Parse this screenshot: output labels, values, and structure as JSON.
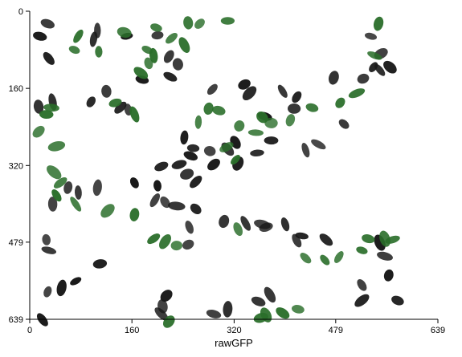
{
  "chart_data": {
    "type": "scatter",
    "xlabel": "rawGFP",
    "xlim": [
      0,
      639
    ],
    "ylim": [
      0,
      639
    ],
    "y_inverted": true,
    "x_ticks": [
      "0",
      "160",
      "320",
      "479",
      "639"
    ],
    "y_ticks": [
      "0",
      "160",
      "320",
      "479",
      "639"
    ],
    "grid": false,
    "series": [
      {
        "color": "#1a1a1a",
        "points": [
          [
            28,
            26
          ],
          [
            16,
            52
          ],
          [
            30,
            98
          ],
          [
            106,
            40
          ],
          [
            100,
            58
          ],
          [
            152,
            52
          ],
          [
            200,
            50
          ],
          [
            218,
            94
          ],
          [
            232,
            110
          ],
          [
            220,
            136
          ],
          [
            176,
            142
          ],
          [
            120,
            166
          ],
          [
            142,
            200
          ],
          [
            154,
            204
          ],
          [
            96,
            188
          ],
          [
            36,
            188
          ],
          [
            14,
            198
          ],
          [
            286,
            162
          ],
          [
            336,
            152
          ],
          [
            344,
            170
          ],
          [
            396,
            166
          ],
          [
            418,
            178
          ],
          [
            414,
            202
          ],
          [
            368,
            218
          ],
          [
            476,
            138
          ],
          [
            522,
            140
          ],
          [
            538,
            116
          ],
          [
            564,
            116
          ],
          [
            534,
            52
          ],
          [
            550,
            88
          ],
          [
            548,
            122
          ],
          [
            492,
            234
          ],
          [
            452,
            276
          ],
          [
            432,
            288
          ],
          [
            378,
            268
          ],
          [
            322,
            272
          ],
          [
            310,
            286
          ],
          [
            282,
            290
          ],
          [
            256,
            284
          ],
          [
            242,
            262
          ],
          [
            252,
            300
          ],
          [
            234,
            318
          ],
          [
            246,
            338
          ],
          [
            288,
            318
          ],
          [
            326,
            316
          ],
          [
            356,
            294
          ],
          [
            260,
            354
          ],
          [
            206,
            322
          ],
          [
            200,
            362
          ],
          [
            196,
            392
          ],
          [
            212,
            396
          ],
          [
            230,
            404
          ],
          [
            260,
            410
          ],
          [
            304,
            436
          ],
          [
            338,
            440
          ],
          [
            364,
            442
          ],
          [
            400,
            442
          ],
          [
            426,
            466
          ],
          [
            370,
            448
          ],
          [
            250,
            448
          ],
          [
            248,
            484
          ],
          [
            418,
            476
          ],
          [
            464,
            474
          ],
          [
            548,
            480
          ],
          [
            556,
            508
          ],
          [
            562,
            548
          ],
          [
            520,
            568
          ],
          [
            520,
            600
          ],
          [
            576,
            600
          ],
          [
            376,
            588
          ],
          [
            358,
            602
          ],
          [
            310,
            618
          ],
          [
            288,
            628
          ],
          [
            214,
            590
          ],
          [
            208,
            612
          ],
          [
            206,
            628
          ],
          [
            164,
            356
          ],
          [
            106,
            366
          ],
          [
            76,
            376
          ],
          [
            60,
            366
          ],
          [
            36,
            400
          ],
          [
            26,
            474
          ],
          [
            30,
            496
          ],
          [
            110,
            524
          ],
          [
            72,
            560
          ],
          [
            50,
            574
          ],
          [
            28,
            582
          ],
          [
            20,
            640
          ]
        ]
      },
      {
        "color": "#2a6e2a",
        "points": [
          [
            76,
            52
          ],
          [
            70,
            80
          ],
          [
            108,
            84
          ],
          [
            148,
            44
          ],
          [
            184,
            80
          ],
          [
            198,
            34
          ],
          [
            248,
            24
          ],
          [
            242,
            70
          ],
          [
            222,
            56
          ],
          [
            194,
            92
          ],
          [
            186,
            108
          ],
          [
            174,
            128
          ],
          [
            266,
            26
          ],
          [
            310,
            20
          ],
          [
            34,
            200
          ],
          [
            26,
            214
          ],
          [
            14,
            250
          ],
          [
            42,
            280
          ],
          [
            134,
            190
          ],
          [
            164,
            214
          ],
          [
            280,
            202
          ],
          [
            296,
            206
          ],
          [
            264,
            230
          ],
          [
            328,
            238
          ],
          [
            364,
            220
          ],
          [
            308,
            282
          ],
          [
            322,
            308
          ],
          [
            354,
            252
          ],
          [
            378,
            232
          ],
          [
            408,
            226
          ],
          [
            442,
            200
          ],
          [
            486,
            190
          ],
          [
            512,
            170
          ],
          [
            540,
            92
          ],
          [
            546,
            26
          ],
          [
            38,
            334
          ],
          [
            48,
            356
          ],
          [
            42,
            382
          ],
          [
            72,
            400
          ],
          [
            122,
            414
          ],
          [
            164,
            422
          ],
          [
            194,
            472
          ],
          [
            212,
            478
          ],
          [
            230,
            486
          ],
          [
            326,
            452
          ],
          [
            432,
            512
          ],
          [
            462,
            516
          ],
          [
            484,
            510
          ],
          [
            520,
            496
          ],
          [
            530,
            472
          ],
          [
            556,
            472
          ],
          [
            568,
            474
          ],
          [
            420,
            618
          ],
          [
            396,
            626
          ],
          [
            370,
            630
          ],
          [
            362,
            636
          ],
          [
            218,
            644
          ]
        ]
      }
    ]
  }
}
